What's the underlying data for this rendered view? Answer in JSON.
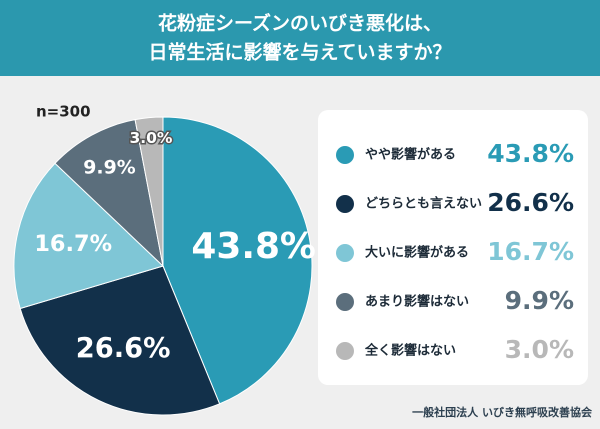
{
  "chart_data": {
    "type": "pie",
    "title": [
      "花粉症シーズンのいびき悪化は、",
      "日常生活に影響を与えていますか？"
    ],
    "annotation": "n=300",
    "source": "一般社団法人 いびき無呼吸改善協会",
    "categories": [
      "やや影響がある",
      "どちらとも言えない",
      "大いに影響がある",
      "あまり影響はない",
      "全く影響はない"
    ],
    "values": [
      43.8,
      26.6,
      16.7,
      9.9,
      3.0
    ],
    "value_labels": [
      "43.8%",
      "26.6%",
      "16.7%",
      "9.9%",
      "3.0%"
    ],
    "colors": [
      "#2a9bb5",
      "#12304a",
      "#7fc6d6",
      "#5b6e7c",
      "#b8b8b8"
    ],
    "legend": "right"
  }
}
